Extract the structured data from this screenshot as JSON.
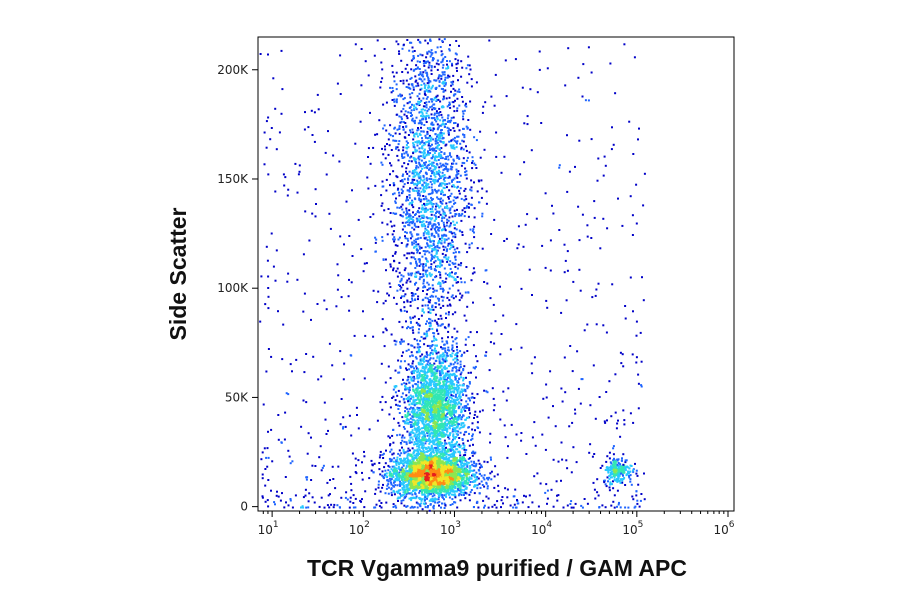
{
  "chart_data": {
    "type": "scatter",
    "subtype": "flow-cytometry-density-dot-plot",
    "title": "",
    "xlabel": "TCR Vgamma9 purified / GAM APC",
    "ylabel": "Side Scatter",
    "x_scale": "log",
    "xlim": [
      7,
      120000
    ],
    "ylim": [
      -2000,
      215000
    ],
    "x_ticks": [
      {
        "value": 10,
        "base": "10",
        "exp": "1"
      },
      {
        "value": 100,
        "base": "10",
        "exp": "2"
      },
      {
        "value": 1000,
        "base": "10",
        "exp": "3"
      },
      {
        "value": 10000,
        "base": "10",
        "exp": "4"
      },
      {
        "value": 100000,
        "base": "10",
        "exp": "5"
      },
      {
        "value": 1000000,
        "base": "10",
        "exp": "6"
      }
    ],
    "y_ticks": [
      {
        "value": 0,
        "label": "0"
      },
      {
        "value": 50000,
        "label": "50K"
      },
      {
        "value": 100000,
        "label": "100K"
      },
      {
        "value": 150000,
        "label": "150K"
      },
      {
        "value": 200000,
        "label": "200K"
      }
    ],
    "grid": false,
    "legend": "none",
    "colormap": [
      "#0000c8",
      "#1e64ff",
      "#28c8ff",
      "#32e6b4",
      "#8ce650",
      "#f0e628",
      "#ff8c14",
      "#e61e1e"
    ],
    "populations": [
      {
        "name": "",
        "x_center": 550,
        "y_center": 15000,
        "x_spread_decades": 0.22,
        "y_spread": 5000,
        "density": "very high"
      },
      {
        "name": "",
        "x_center": 600,
        "y_center": 45000,
        "x_spread_decades": 0.18,
        "y_spread": 14000,
        "density": "medium"
      },
      {
        "name": "",
        "x_center": 520,
        "y_center": 150000,
        "x_spread_decades": 0.22,
        "y_spread": 40000,
        "density": "medium"
      },
      {
        "name": "",
        "x_center": 60000,
        "y_center": 17000,
        "x_spread_decades": 0.08,
        "y_spread": 3000,
        "density": "low"
      }
    ]
  }
}
